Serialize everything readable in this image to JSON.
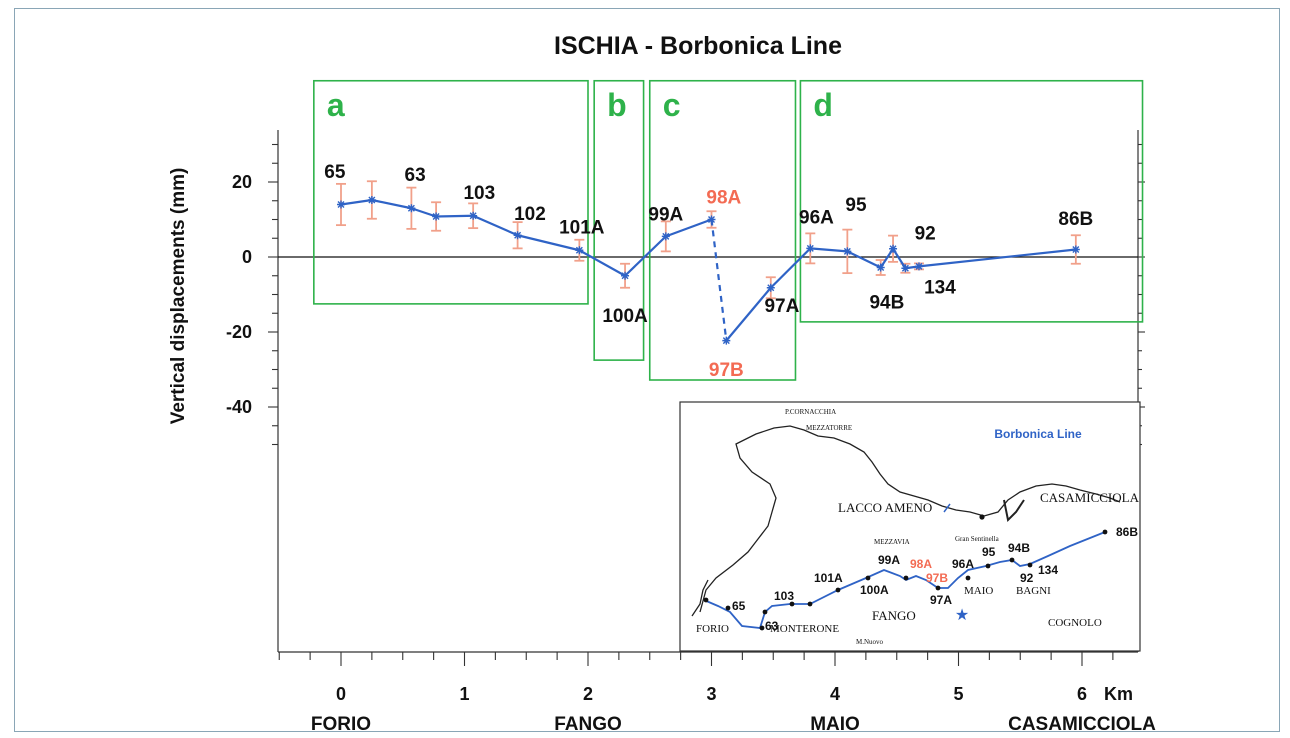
{
  "chart_data": {
    "type": "line",
    "title": "ISCHIA  -  Borbonica Line",
    "ylabel": "Vertical displacements  (mm)",
    "xlabel_unit": "Km",
    "xlim": [
      -0.3,
      6.5
    ],
    "ylim": [
      -40,
      30
    ],
    "x_ticks": [
      0,
      1,
      2,
      3,
      4,
      5,
      6
    ],
    "y_ticks": [
      20,
      0,
      -20,
      -40
    ],
    "x_place_labels": [
      {
        "x": 0,
        "label": "FORIO"
      },
      {
        "x": 2,
        "label": "FANGO"
      },
      {
        "x": 4,
        "label": "MAIO"
      },
      {
        "x": 6,
        "label": "CASAMICCIOLA"
      }
    ],
    "colors": {
      "line": "#2f63c6",
      "error_bars": "#f1a08a",
      "boxes": "#2eb24a",
      "highlight": "#f36b53"
    },
    "series": [
      {
        "points": [
          {
            "x": 0.0,
            "y": 14.0,
            "err": 5.5
          },
          {
            "x": 0.25,
            "y": 15.2,
            "err": 5.0
          },
          {
            "x": 0.57,
            "y": 13.0,
            "err": 5.5
          },
          {
            "x": 0.77,
            "y": 10.8,
            "err": 3.8
          },
          {
            "x": 1.07,
            "y": 11.0,
            "err": 3.3
          },
          {
            "x": 1.43,
            "y": 5.8,
            "err": 3.5
          },
          {
            "x": 1.93,
            "y": 1.8,
            "err": 2.8
          },
          {
            "x": 2.3,
            "y": -5.0,
            "err": 3.2
          },
          {
            "x": 2.63,
            "y": 5.5,
            "err": 4.0
          },
          {
            "x": 3.0,
            "y": 10.0,
            "err": 2.2
          },
          {
            "x": 3.12,
            "y": -22.3,
            "err": 0
          },
          {
            "x": 3.48,
            "y": -8.2,
            "err": 2.8
          },
          {
            "x": 3.8,
            "y": 2.3,
            "err": 4.0
          },
          {
            "x": 4.1,
            "y": 1.5,
            "err": 5.8
          },
          {
            "x": 4.37,
            "y": -2.8,
            "err": 2.0
          },
          {
            "x": 4.47,
            "y": 2.2,
            "err": 3.5
          },
          {
            "x": 4.57,
            "y": -3.0,
            "err": 1.2
          },
          {
            "x": 4.68,
            "y": -2.5,
            "err": 0.8
          },
          {
            "x": 5.95,
            "y": 2.0,
            "err": 3.8
          }
        ],
        "dashed_segment": [
          9,
          10
        ]
      }
    ],
    "point_labels": [
      {
        "text": "65",
        "x": -0.05,
        "y": 23.0,
        "color": "black"
      },
      {
        "text": "63",
        "x": 0.6,
        "y": 22.2,
        "color": "black"
      },
      {
        "text": "103",
        "x": 1.12,
        "y": 17.3,
        "color": "black"
      },
      {
        "text": "102",
        "x": 1.53,
        "y": 11.8,
        "color": "black"
      },
      {
        "text": "101A",
        "x": 1.95,
        "y": 8.2,
        "color": "black"
      },
      {
        "text": "100A",
        "x": 2.3,
        "y": -15.4,
        "color": "black"
      },
      {
        "text": "99A",
        "x": 2.63,
        "y": 11.6,
        "color": "black"
      },
      {
        "text": "98A",
        "x": 3.1,
        "y": 16.2,
        "color": "red"
      },
      {
        "text": "97B",
        "x": 3.12,
        "y": -29.8,
        "color": "red"
      },
      {
        "text": "97A",
        "x": 3.57,
        "y": -12.8,
        "color": "black"
      },
      {
        "text": "96A",
        "x": 3.85,
        "y": 10.8,
        "color": "black"
      },
      {
        "text": "95",
        "x": 4.17,
        "y": 14.1,
        "color": "black"
      },
      {
        "text": "94B",
        "x": 4.42,
        "y": -11.8,
        "color": "black"
      },
      {
        "text": "92",
        "x": 4.73,
        "y": 6.6,
        "color": "black"
      },
      {
        "text": "134",
        "x": 4.85,
        "y": -7.8,
        "color": "black"
      },
      {
        "text": "86B",
        "x": 5.95,
        "y": 10.4,
        "color": "black"
      }
    ],
    "boxes": [
      {
        "label": "a",
        "x0": -0.22,
        "x1": 2.0,
        "y0": -12.5,
        "y1": 47.0
      },
      {
        "label": "b",
        "x0": 2.05,
        "x1": 2.45,
        "y0": -27.5,
        "y1": 47.0
      },
      {
        "label": "c",
        "x0": 2.5,
        "x1": 3.68,
        "y0": -32.8,
        "y1": 47.0
      },
      {
        "label": "d",
        "x0": 3.72,
        "x1": 6.49,
        "y0": -17.3,
        "y1": 47.0
      }
    ]
  },
  "map": {
    "title": "Borbonica Line",
    "place_labels": [
      "P.CORNACCHIA",
      "MEZZATORRE",
      "LACCO AMENO",
      "CASAMICCIOLA",
      "MEZZAVIA",
      "Gran Sentinella",
      "FANGO",
      "MAIO",
      "BAGNI",
      "FORIO",
      "MONTERONE",
      "COGNOLO",
      "M.Nuovo"
    ],
    "station_labels_black": [
      "86B",
      "99A",
      "96A",
      "95",
      "94B",
      "92",
      "134",
      "101A",
      "100A",
      "97A",
      "103",
      "65",
      "63"
    ],
    "station_labels_red": [
      "98A",
      "97B"
    ]
  }
}
